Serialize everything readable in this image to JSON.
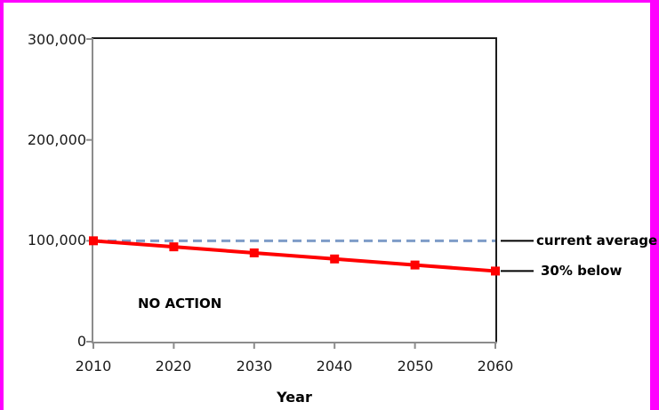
{
  "frame_color": "#FF00FF",
  "chart_data": {
    "type": "line",
    "x": [
      2010,
      2020,
      2030,
      2040,
      2050,
      2060
    ],
    "xtick_labels": [
      "2010",
      "2020",
      "2030",
      "2040",
      "2050",
      "2060"
    ],
    "ytick_labels": [
      "300,000",
      "200,000",
      "100,000",
      "0"
    ],
    "ylim": [
      0,
      300000
    ],
    "xlim": [
      2010,
      2060
    ],
    "xlabel": "Year",
    "ylabel": "",
    "grid": false,
    "legend_position": "none",
    "series": [
      {
        "name": "current average",
        "values": [
          100000,
          100000,
          100000,
          100000,
          100000,
          100000
        ],
        "color": "#7E9CC8",
        "line_style": "dashed",
        "marker": "none",
        "width": 3
      },
      {
        "name": "30% below",
        "values": [
          100000,
          94000,
          88000,
          82000,
          76000,
          70000
        ],
        "color": "#FF0000",
        "line_style": "solid",
        "marker": "square",
        "width": 4
      }
    ],
    "annotations": [
      {
        "text": "current average",
        "anchor_value": 100000,
        "leader_line": true
      },
      {
        "text": "30% below",
        "anchor_value": 70000,
        "leader_line": true
      },
      {
        "text": "NO ACTION",
        "anchor_value": null,
        "leader_line": false
      }
    ]
  }
}
